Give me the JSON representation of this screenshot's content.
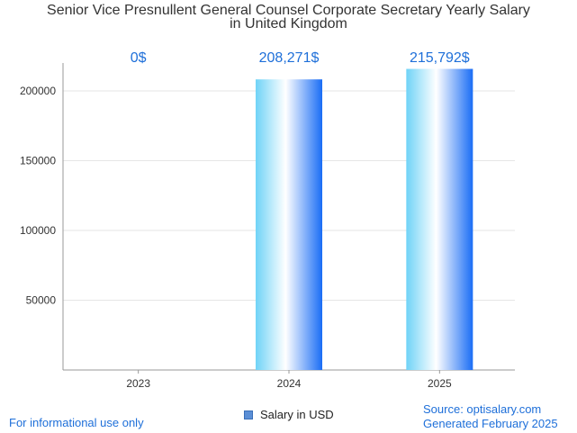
{
  "chart_data": {
    "type": "bar",
    "title_line1": "Senior Vice Presnullent General Counsel Corporate Secretary Yearly Salary",
    "title_line2": "in United Kingdom",
    "categories": [
      "2023",
      "2024",
      "2025"
    ],
    "series": [
      {
        "name": "Salary in USD",
        "values": [
          0,
          208271,
          215792
        ]
      }
    ],
    "data_labels": [
      "0$",
      "208,271$",
      "215,792$"
    ],
    "y_ticks": [
      "50000",
      "100000",
      "150000",
      "200000"
    ],
    "ylim": [
      0,
      220000
    ],
    "grid": true,
    "legend": "bottom-center"
  },
  "footer": {
    "left": "For informational use only",
    "source": "Source: optisalary.com",
    "generated": "Generated February 2025"
  },
  "colors": {
    "label_blue": "#1e6fd9",
    "grid": "#e6e6e6",
    "axis": "#999999"
  }
}
